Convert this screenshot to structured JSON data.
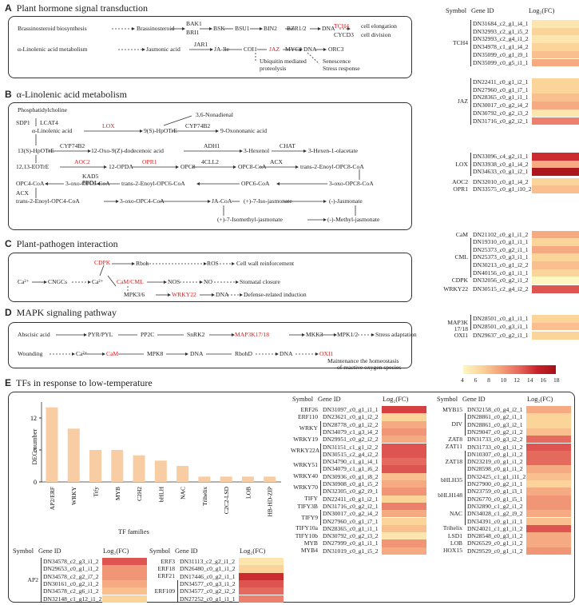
{
  "panels": {
    "A": {
      "letter": "A",
      "title": "Plant hormone signal transduction"
    },
    "B": {
      "letter": "B",
      "title": "α-Linolenic acid metabolism"
    },
    "C": {
      "letter": "C",
      "title": "Plant-pathogen interaction"
    },
    "D": {
      "letter": "D",
      "title": "MAPK signaling pathway"
    },
    "E": {
      "letter": "E",
      "title": "TFs in response to low-temperature"
    }
  },
  "pathA": {
    "row1": [
      "Brassinosteroid biosynthesis",
      "Brassinosteroid",
      "BAK1",
      "BRI1",
      "BSK",
      "BSU1",
      "BIN2",
      "BZR1/2",
      "DNA",
      "TCH4",
      "CYCD3",
      "cell elongation",
      "cell division"
    ],
    "row2": [
      "α-Linolenic acid metabolism",
      "Jasmonic acid",
      "JAR1",
      "JA-Ile",
      "COI1",
      "JAZ",
      "MYC2",
      "DNA",
      "ORC3",
      "Ubiquitin mediated",
      "proteolysis",
      "Senescence",
      "Stress response"
    ]
  },
  "pathB": {
    "labels": [
      "Phosphatidylcholine",
      "SDP1",
      "LCAT4",
      "α-Linolenic acid",
      "LOX",
      "9(S)-HpOTrE",
      "3,6-Nonadienal",
      "CYP74B2",
      "9-Oxononanic acid",
      "13(S)-HpOTrE",
      "CYP74B2",
      "12-Oxo-9(Z)-dodecenoic acid",
      "ADH1",
      "3-Hexenol",
      "CHAT",
      "3-Hexen-1-olacetate",
      "12,13-EOTrE",
      "AOC2",
      "12-OPDA",
      "OPR1",
      "OPC8",
      "4CLL2",
      "OPC8-CoA",
      "ACX",
      "trans-2-Enoyl-OPC8-CoA",
      "KAD5",
      "PED1",
      "OPC4-CoA",
      "3-oxo-OPC6-CoA",
      "trans-2-Enoyl-OPC6-CoA",
      "OPC6-CoA",
      "3-oxo-OPC8-CoA",
      "ACX",
      "trans-2-Enoyl-OPC4-CoA",
      "3-oxo-OPC4-CoA",
      "JA-CoA",
      "(+)-7-Iso-jasmonate",
      "(-)-Jasmonate",
      "(+)-7-Isomethyl-jasmonate",
      "(-)-Methyl-jasmonate"
    ]
  },
  "pathC": {
    "labels": [
      "CDPK",
      "Rboh",
      "ROS",
      "Cell wall reinforcement",
      "Ca²⁺",
      "CNGCs",
      "Ca²⁺",
      "CaM/CML",
      "NOS",
      "NO",
      "Stomatal closure",
      "MPK3/6",
      "WRKY22",
      "DNA",
      "Defense-related induction"
    ]
  },
  "pathD": {
    "labels": [
      "Abscisic acid",
      "PYR/PYL",
      "PP2C",
      "SnRK2",
      "MAP3K17/18",
      "MKK3",
      "MPK1/2",
      "Stress adaptation",
      "Wounding",
      "Ca²⁺",
      "CaM",
      "MPK8",
      "DNA",
      "RbohD",
      "DNA",
      "OXI1",
      "Maintenance the homeostasis",
      "of reactive oxygen species"
    ]
  },
  "heatmapHeader": {
    "symbol": "Symbol",
    "geneId": "Gene ID",
    "fc": "Log₂(FC)"
  },
  "colorbar": {
    "ticks": [
      "4",
      "6",
      "8",
      "10",
      "12",
      "14",
      "16",
      "18"
    ],
    "min": 4,
    "max": 18
  },
  "rightGroups": [
    {
      "symbol": "TCH4",
      "genes": [
        {
          "id": "DN31684_c2_g1_i4_1",
          "fc": 5
        },
        {
          "id": "DN32993_c2_g1_i5_2",
          "fc": 6
        },
        {
          "id": "DN32993_c2_g4_i1_2",
          "fc": 5
        },
        {
          "id": "DN34978_c1_g1_i4_2",
          "fc": 6
        },
        {
          "id": "DN35099_c0_g1_i9_1",
          "fc": 7
        },
        {
          "id": "DN35099_c0_g5_i1_1",
          "fc": 8
        }
      ]
    },
    {
      "symbol": "JAZ",
      "genes": [
        {
          "id": "DN22411_c0_g1_i2_1",
          "fc": 6
        },
        {
          "id": "DN27960_c0_g1_i7_1",
          "fc": 6
        },
        {
          "id": "DN28365_c0_g1_i1_1",
          "fc": 7
        },
        {
          "id": "DN30017_c0_g2_i4_2",
          "fc": 8
        },
        {
          "id": "DN30792_c0_g2_i3_2",
          "fc": 5
        },
        {
          "id": "DN31716_c0_g2_i2_1",
          "fc": 10
        }
      ]
    },
    {
      "symbol": "LOX",
      "genes": [
        {
          "id": "DN33096_c4_g2_i1_1",
          "fc": 14
        },
        {
          "id": "DN33938_c0_g1_i4_2",
          "fc": 8
        },
        {
          "id": "DN34633_c0_g1_i2_1",
          "fc": 17
        }
      ]
    },
    {
      "symbol": "AOC2",
      "genes": [
        {
          "id": "DN32010_c0_g1_i4_2",
          "fc": 6
        }
      ]
    },
    {
      "symbol": "OPR1",
      "genes": [
        {
          "id": "DN33575_c0_g1_i10_2",
          "fc": 7
        }
      ]
    },
    {
      "symbol": "CaM",
      "genes": [
        {
          "id": "DN21102_c0_g1_i1_2",
          "fc": 8
        }
      ]
    },
    {
      "symbol": "CML",
      "genes": [
        {
          "id": "DN19310_c0_g1_i1_1",
          "fc": 6
        },
        {
          "id": "DN25373_c0_g2_i1_1",
          "fc": 8
        },
        {
          "id": "DN25373_c0_g3_i1_1",
          "fc": 6
        },
        {
          "id": "DN30213_c0_g1_i2_2",
          "fc": 7
        },
        {
          "id": "DN40156_c0_g1_i1_1",
          "fc": 6
        }
      ]
    },
    {
      "symbol": "CDPK",
      "genes": [
        {
          "id": "DN32056_c0_g2_i1_2",
          "fc": 4
        }
      ]
    },
    {
      "symbol": "WRKY22",
      "genes": [
        {
          "id": "DN30515_c2_g4_i2_2",
          "fc": 12
        }
      ]
    },
    {
      "symbol": "MAP3K 17/18",
      "genes": [
        {
          "id": "DN28501_c0_g1_i1_1",
          "fc": 6
        },
        {
          "id": "DN28501_c0_g3_i1_1",
          "fc": 7
        }
      ]
    },
    {
      "symbol": "OXI1",
      "genes": [
        {
          "id": "DN29637_c0_g2_i1_1",
          "fc": 6
        }
      ]
    }
  ],
  "barChart": {
    "ylabel": "DEG number",
    "xlabel": "TF families",
    "yticks": [
      "0",
      "6",
      "12"
    ],
    "categories": [
      "AP2/ERF",
      "WRKY",
      "Tify",
      "MYB",
      "C2H2",
      "bHLH",
      "NAC",
      "Trihelix",
      "C2C2-LSD",
      "LOB",
      "HB-HD-ZIP"
    ],
    "values": [
      14,
      10,
      6,
      6,
      5,
      4,
      3,
      1,
      1,
      1,
      1
    ]
  },
  "chart_data": {
    "type": "bar",
    "categories": [
      "AP2/ERF",
      "WRKY",
      "Tify",
      "MYB",
      "C2H2",
      "bHLH",
      "NAC",
      "Trihelix",
      "C2C2-LSD",
      "LOB",
      "HB-HD-ZIP"
    ],
    "values": [
      14,
      10,
      6,
      6,
      5,
      4,
      3,
      1,
      1,
      1,
      1
    ],
    "xlabel": "TF families",
    "ylabel": "DEG number",
    "ylim": [
      0,
      15
    ]
  },
  "bottomTables": [
    {
      "groups": [
        {
          "symbol": "AP2",
          "genes": [
            {
              "id": "DN34578_c2_g3_i1_2",
              "fc": 12
            },
            {
              "id": "DN29653_c0_g1_i1_2",
              "fc": 9
            },
            {
              "id": "DN34578_c2_g2_i7_2",
              "fc": 9
            },
            {
              "id": "DN30161_c0_g2_i1_2",
              "fc": 8
            },
            {
              "id": "DN34578_c2_g6_i1_2",
              "fc": 7
            },
            {
              "id": "DN32148_c1_g12_i1_2",
              "fc": 6
            }
          ]
        }
      ]
    },
    {
      "groups": [
        {
          "symbol": "ERF3",
          "genes": [
            {
              "id": "DN31113_c2_g2_i1_2",
              "fc": 5
            }
          ]
        },
        {
          "symbol": "ERF18",
          "genes": [
            {
              "id": "DN26480_c0_g1_i1_2",
              "fc": 6
            }
          ]
        },
        {
          "symbol": "ERF21",
          "genes": [
            {
              "id": "DN17446_c0_g2_i1_1",
              "fc": 14
            }
          ]
        },
        {
          "symbol": "ERF109",
          "genes": [
            {
              "id": "DN34577_c0_g3_i1_2",
              "fc": 12
            },
            {
              "id": "DN34577_c0_g2_i2_2",
              "fc": 11
            },
            {
              "id": "DN27252_c0_g1_i1_1",
              "fc": 10
            }
          ]
        }
      ]
    },
    {
      "groups": [
        {
          "symbol": "ERF26",
          "genes": [
            {
              "id": "DN31097_c0_g1_i1_1",
              "fc": 13
            }
          ]
        },
        {
          "symbol": "ERF110",
          "genes": [
            {
              "id": "DN23621_c0_g1_i2_2",
              "fc": 6
            }
          ]
        },
        {
          "symbol": "WRKY",
          "genes": [
            {
              "id": "DN28778_c0_g1_i2_2",
              "fc": 8
            },
            {
              "id": "DN34079_c1_g3_i4_2",
              "fc": 9
            }
          ]
        },
        {
          "symbol": "WRKY19",
          "genes": [
            {
              "id": "DN29951_c0_g2_i2_2",
              "fc": 8
            }
          ]
        },
        {
          "symbol": "WRKY22A",
          "genes": [
            {
              "id": "DN31151_c1_g1_i2_2",
              "fc": 12
            },
            {
              "id": "DN30515_c2_g4_i2_2",
              "fc": 12
            }
          ]
        },
        {
          "symbol": "WRKY51",
          "genes": [
            {
              "id": "DN34790_c1_g1_i4_1",
              "fc": 11
            },
            {
              "id": "DN34079_c1_g1_i6_2",
              "fc": 12
            }
          ]
        },
        {
          "symbol": "WRKY40",
          "genes": [
            {
              "id": "DN30936_c0_g1_i8_2",
              "fc": 7
            }
          ]
        },
        {
          "symbol": "WRKY70",
          "genes": [
            {
              "id": "DN30908_c0_g1_i5_2",
              "fc": 8
            },
            {
              "id": "DN32305_c0_g2_i9_1",
              "fc": 9
            }
          ]
        },
        {
          "symbol": "TIFY",
          "genes": [
            {
              "id": "DN22411_c0_g1_i2_1",
              "fc": 6
            }
          ]
        },
        {
          "symbol": "TIFY3B",
          "genes": [
            {
              "id": "DN31716_c0_g2_i2_1",
              "fc": 10
            }
          ]
        },
        {
          "symbol": "TIFY9",
          "genes": [
            {
              "id": "DN30017_c0_g2_i4_2",
              "fc": 8
            },
            {
              "id": "DN27960_c0_g1_i7_1",
              "fc": 6
            }
          ]
        },
        {
          "symbol": "TIFY10a",
          "genes": [
            {
              "id": "DN28365_c0_g1_i1_1",
              "fc": 7
            }
          ]
        },
        {
          "symbol": "TIFY10b",
          "genes": [
            {
              "id": "DN30792_c0_g2_i3_2",
              "fc": 5
            }
          ]
        },
        {
          "symbol": "MYB",
          "genes": [
            {
              "id": "DN27999_c0_g1_i1_1",
              "fc": 9
            }
          ]
        },
        {
          "symbol": "MYB4",
          "genes": [
            {
              "id": "DN31019_c0_g1_i5_2",
              "fc": 8
            }
          ]
        }
      ]
    },
    {
      "groups": [
        {
          "symbol": "MYB15",
          "genes": [
            {
              "id": "DN32158_c0_g4_i2_1",
              "fc": 8
            }
          ]
        },
        {
          "symbol": "DIV",
          "genes": [
            {
              "id": "DN28861_c0_g2_i1_1",
              "fc": 6
            },
            {
              "id": "DN28861_c0_g3_i2_1",
              "fc": 6
            },
            {
              "id": "DN29047_c0_g2_i1_2",
              "fc": 7
            }
          ]
        },
        {
          "symbol": "ZAT8",
          "genes": [
            {
              "id": "DN31733_c0_g3_i2_2",
              "fc": 11
            }
          ]
        },
        {
          "symbol": "ZAT11",
          "genes": [
            {
              "id": "DN31733_c0_g1_i1_2",
              "fc": 12
            }
          ]
        },
        {
          "symbol": "ZAT18",
          "genes": [
            {
              "id": "DN10307_c0_g1_i1_2",
              "fc": 11
            },
            {
              "id": "DN23219_c0_g1_i1_2",
              "fc": 11
            },
            {
              "id": "DN28598_c0_g1_i1_2",
              "fc": 8
            }
          ]
        },
        {
          "symbol": "bHLH35",
          "genes": [
            {
              "id": "DN32425_c1_g1_i11_2",
              "fc": 7
            },
            {
              "id": "DN27900_c0_g2_i1_1",
              "fc": 6
            }
          ]
        },
        {
          "symbol": "bHLH148",
          "genes": [
            {
              "id": "DN23759_c0_g1_i3_1",
              "fc": 8
            },
            {
              "id": "DN26770_c0_g1_i5_1",
              "fc": 9
            }
          ]
        },
        {
          "symbol": "NAC",
          "genes": [
            {
              "id": "DN32890_c1_g2_i1_2",
              "fc": 9
            },
            {
              "id": "DN34028_c1_g2_i9_2",
              "fc": 8
            },
            {
              "id": "DN34391_c0_g1_i1_1",
              "fc": 7
            }
          ]
        },
        {
          "symbol": "Trihelix",
          "genes": [
            {
              "id": "DN24021_c1_g1_i1_2",
              "fc": 12
            }
          ]
        },
        {
          "symbol": "LSD1",
          "genes": [
            {
              "id": "DN28548_c0_g3_i1_2",
              "fc": 8
            }
          ]
        },
        {
          "symbol": "LOB",
          "genes": [
            {
              "id": "DN26529_c0_g1_i1_2",
              "fc": 8
            }
          ]
        },
        {
          "symbol": "HOX15",
          "genes": [
            {
              "id": "DN29529_c0_g1_i1_2",
              "fc": 9
            }
          ]
        }
      ]
    }
  ]
}
